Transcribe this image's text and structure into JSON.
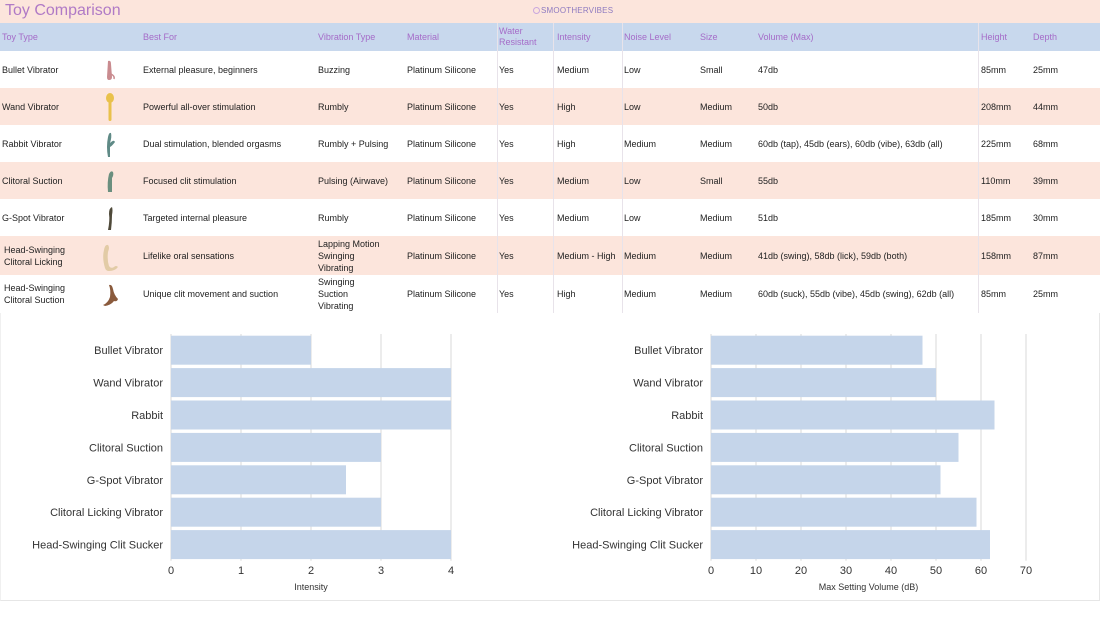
{
  "header": {
    "title": "Toy Comparison",
    "brand": "SMOOTHERVIBES"
  },
  "table": {
    "columns": [
      "Toy Type",
      "Best For",
      "Vibration Type",
      "Material",
      "Water Resistant",
      "Intensity",
      "Noise Level",
      "Size",
      "Volume (Max)",
      "Height",
      "Depth"
    ],
    "rows": [
      {
        "toy": "Bullet Vibrator",
        "icon": "bullet-vibrator-icon",
        "color": "#c98b8f",
        "best_for": "External pleasure, beginners",
        "vibration": "Buzzing",
        "material": "Platinum Silicone",
        "water": "Yes",
        "intensity": "Medium",
        "noise": "Low",
        "size": "Small",
        "volume": "47db",
        "height": "85mm",
        "depth": "25mm"
      },
      {
        "toy": "Wand Vibrator",
        "icon": "wand-vibrator-icon",
        "color": "#e9c14b",
        "best_for": "Powerful all-over stimulation",
        "vibration": "Rumbly",
        "material": "Platinum Silicone",
        "water": "Yes",
        "intensity": "High",
        "noise": "Low",
        "size": "Medium",
        "volume": "50db",
        "height": "208mm",
        "depth": "44mm"
      },
      {
        "toy": "Rabbit Vibrator",
        "icon": "rabbit-vibrator-icon",
        "color": "#5f8a86",
        "best_for": "Dual stimulation, blended orgasms",
        "vibration": "Rumbly + Pulsing",
        "material": "Platinum Silicone",
        "water": "Yes",
        "intensity": "High",
        "noise": "Medium",
        "size": "Medium",
        "volume": "60db (tap), 45db (ears), 60db (vibe), 63db (all)",
        "height": "225mm",
        "depth": "68mm"
      },
      {
        "toy": "Clitoral Suction",
        "icon": "clitoral-suction-icon",
        "color": "#6b8f7f",
        "best_for": "Focused clit stimulation",
        "vibration": "Pulsing (Airwave)",
        "material": "Platinum Silicone",
        "water": "Yes",
        "intensity": "Medium",
        "noise": "Low",
        "size": "Small",
        "volume": "55db",
        "height": "110mm",
        "depth": "39mm"
      },
      {
        "toy": "G-Spot Vibrator",
        "icon": "g-spot-vibrator-icon",
        "color": "#4f4a3a",
        "best_for": "Targeted internal pleasure",
        "vibration": "Rumbly",
        "material": "Platinum Silicone",
        "water": "Yes",
        "intensity": "Medium",
        "noise": "Low",
        "size": "Medium",
        "volume": "51db",
        "height": "185mm",
        "depth": "30mm"
      },
      {
        "toy": "Head-Swinging Clitoral Licking",
        "toy_lines": [
          "Head-Swinging",
          "Clitoral Licking"
        ],
        "icon": "clitoral-licking-icon",
        "color": "#e2cba6",
        "best_for": "Lifelike oral sensations",
        "vibration_lines": [
          "Lapping Motion",
          "Swinging",
          "Vibrating"
        ],
        "material": "Platinum Silicone",
        "water": "Yes",
        "intensity": "Medium - High",
        "noise": "Medium",
        "size": "Medium",
        "volume": "41db (swing), 58db (lick), 59db (both)",
        "height": "158mm",
        "depth": "87mm"
      },
      {
        "toy": "Head-Swinging Clitoral Suction",
        "toy_lines": [
          "Head-Swinging",
          "Clitoral Suction"
        ],
        "icon": "clitoral-sucker-icon",
        "color": "#8a5a3c",
        "best_for": "Unique clit movement and suction",
        "vibration_lines": [
          "Swinging",
          "Suction",
          "Vibrating"
        ],
        "material": "Platinum Silicone",
        "water": "Yes",
        "intensity": "High",
        "noise": "Medium",
        "size": "Medium",
        "volume": "60db (suck), 55db (vibe), 45db (swing), 62db (all)",
        "height": "85mm",
        "depth": "25mm"
      }
    ]
  },
  "chart_data": [
    {
      "type": "bar",
      "orientation": "horizontal",
      "categories": [
        "Bullet Vibrator",
        "Wand Vibrator",
        "Rabbit",
        "Clitoral Suction",
        "G-Spot Vibrator",
        "Clitoral Licking Vibrator",
        "Head-Swinging Clit Sucker"
      ],
      "values": [
        2,
        4,
        4,
        3,
        2.5,
        3,
        4
      ],
      "xlabel": "Intensity",
      "ylabel": "",
      "xlim": [
        0,
        4
      ],
      "ticks": [
        0,
        1,
        2,
        3,
        4
      ],
      "grid": true,
      "color": "#c5d5ea"
    },
    {
      "type": "bar",
      "orientation": "horizontal",
      "categories": [
        "Bullet Vibrator",
        "Wand Vibrator",
        "Rabbit",
        "Clitoral Suction",
        "G-Spot Vibrator",
        "Clitoral Licking Vibrator",
        "Head-Swinging Clit Sucker"
      ],
      "values": [
        47,
        50,
        63,
        55,
        51,
        59,
        62
      ],
      "xlabel": "Max Setting Volume (dB)",
      "ylabel": "",
      "xlim": [
        0,
        70
      ],
      "ticks": [
        0,
        10,
        20,
        30,
        40,
        50,
        60,
        70
      ],
      "grid": true,
      "color": "#c5d5ea"
    }
  ]
}
